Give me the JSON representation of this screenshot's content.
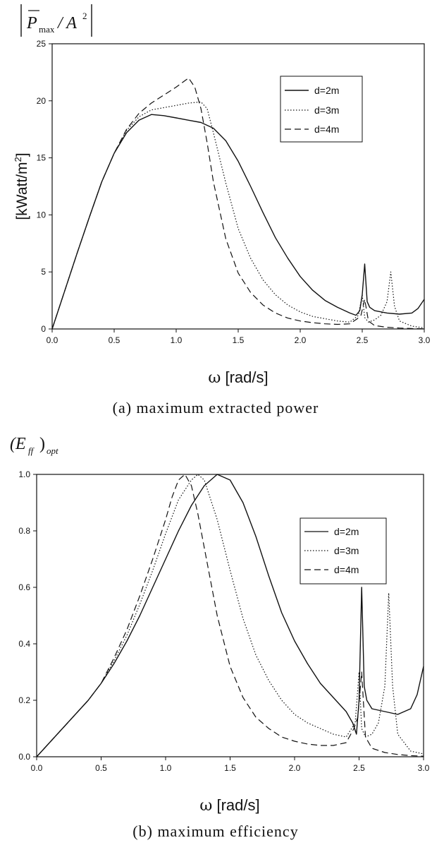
{
  "chart_data": [
    {
      "type": "line",
      "panel_caption": "(a)  maximum  extracted  power",
      "corner_label": {
        "main": "P",
        "sub": "max",
        "rest": "/ A",
        "sup": "2"
      },
      "ylabel": "[kWatt/m",
      "ylabel_sup": "2",
      "ylabel_end": "]",
      "xlabel_symbol": "ω",
      "xlabel": " [rad/s]",
      "xlim": [
        0,
        3
      ],
      "ylim": [
        0,
        25
      ],
      "xticks": [
        "0.0",
        "0.5",
        "1.0",
        "1.5",
        "2.0",
        "2.5",
        "3.0"
      ],
      "yticks": [
        "0",
        "5",
        "10",
        "15",
        "20",
        "25"
      ],
      "legend_position": "top-right",
      "series": [
        {
          "name": "d=2m",
          "style": "solid",
          "x": [
            0,
            0.1,
            0.2,
            0.3,
            0.4,
            0.5,
            0.6,
            0.7,
            0.8,
            0.9,
            1.0,
            1.1,
            1.2,
            1.3,
            1.4,
            1.5,
            1.6,
            1.7,
            1.8,
            1.9,
            2.0,
            2.1,
            2.2,
            2.3,
            2.4,
            2.45,
            2.48,
            2.5,
            2.52,
            2.54,
            2.56,
            2.6,
            2.7,
            2.8,
            2.9,
            2.95,
            3.0
          ],
          "y": [
            0,
            3.3,
            6.6,
            9.8,
            12.9,
            15.4,
            17.2,
            18.3,
            18.8,
            18.7,
            18.5,
            18.3,
            18.1,
            17.6,
            16.5,
            14.7,
            12.5,
            10.2,
            8.0,
            6.2,
            4.6,
            3.4,
            2.5,
            1.9,
            1.4,
            1.2,
            1.6,
            3.0,
            5.7,
            2.4,
            1.9,
            1.6,
            1.4,
            1.3,
            1.4,
            1.8,
            2.6
          ]
        },
        {
          "name": "d=3m",
          "style": "dotted",
          "x": [
            0,
            0.1,
            0.2,
            0.3,
            0.4,
            0.5,
            0.6,
            0.7,
            0.8,
            0.9,
            1.0,
            1.1,
            1.2,
            1.25,
            1.3,
            1.4,
            1.5,
            1.6,
            1.7,
            1.8,
            1.9,
            2.0,
            2.1,
            2.2,
            2.3,
            2.4,
            2.47,
            2.5,
            2.52,
            2.55,
            2.6,
            2.65,
            2.7,
            2.73,
            2.76,
            2.8,
            2.9,
            3.0
          ],
          "y": [
            0,
            3.3,
            6.6,
            9.8,
            12.9,
            15.4,
            17.4,
            18.6,
            19.2,
            19.4,
            19.6,
            19.8,
            19.9,
            19.3,
            17.2,
            12.8,
            8.8,
            6.2,
            4.3,
            3.0,
            2.1,
            1.5,
            1.1,
            0.9,
            0.7,
            0.6,
            1.2,
            3.0,
            1.0,
            0.6,
            0.8,
            1.2,
            2.4,
            5.0,
            2.0,
            0.7,
            0.25,
            0.1
          ]
        },
        {
          "name": "d=4m",
          "style": "dashed",
          "x": [
            0,
            0.1,
            0.2,
            0.3,
            0.4,
            0.5,
            0.6,
            0.7,
            0.8,
            0.9,
            1.0,
            1.05,
            1.1,
            1.15,
            1.2,
            1.25,
            1.3,
            1.4,
            1.5,
            1.6,
            1.7,
            1.8,
            1.9,
            2.0,
            2.1,
            2.2,
            2.3,
            2.4,
            2.46,
            2.49,
            2.52,
            2.55,
            2.6,
            2.7,
            2.8,
            2.9,
            3.0
          ],
          "y": [
            0,
            3.3,
            6.6,
            9.8,
            12.9,
            15.4,
            17.5,
            18.9,
            19.8,
            20.5,
            21.2,
            21.6,
            22.0,
            21.2,
            19.3,
            16.3,
            12.9,
            7.9,
            4.9,
            3.2,
            2.1,
            1.4,
            0.95,
            0.7,
            0.55,
            0.45,
            0.4,
            0.45,
            0.9,
            1.2,
            2.6,
            0.7,
            0.3,
            0.15,
            0.08,
            0.04,
            0.02
          ]
        }
      ]
    },
    {
      "type": "line",
      "panel_caption": "(b)  maximum  efficiency",
      "corner_label": {
        "main": "(E",
        "sub": "ff",
        "rest": ")",
        "sub2": "opt"
      },
      "ylabel": "",
      "xlabel_symbol": "ω",
      "xlabel": " [rad/s]",
      "xlim": [
        0,
        3
      ],
      "ylim": [
        0,
        1
      ],
      "xticks": [
        "0.0",
        "0.5",
        "1.0",
        "1.5",
        "2.0",
        "2.5",
        "3.0"
      ],
      "yticks": [
        "0.0",
        "0.2",
        "0.4",
        "0.6",
        "0.8",
        "1.0"
      ],
      "legend_position": "top-right",
      "series": [
        {
          "name": "d=2m",
          "style": "solid",
          "x": [
            0,
            0.1,
            0.2,
            0.3,
            0.4,
            0.5,
            0.6,
            0.7,
            0.8,
            0.9,
            1.0,
            1.1,
            1.2,
            1.3,
            1.4,
            1.5,
            1.6,
            1.7,
            1.8,
            1.9,
            2.0,
            2.1,
            2.2,
            2.3,
            2.4,
            2.45,
            2.48,
            2.5,
            2.52,
            2.54,
            2.56,
            2.6,
            2.7,
            2.8,
            2.9,
            2.95,
            3.0
          ],
          "y": [
            0,
            0.05,
            0.1,
            0.15,
            0.2,
            0.26,
            0.33,
            0.41,
            0.5,
            0.6,
            0.7,
            0.8,
            0.89,
            0.96,
            1.0,
            0.98,
            0.9,
            0.78,
            0.64,
            0.51,
            0.41,
            0.33,
            0.26,
            0.21,
            0.16,
            0.12,
            0.08,
            0.2,
            0.6,
            0.25,
            0.2,
            0.17,
            0.16,
            0.15,
            0.17,
            0.22,
            0.32
          ]
        },
        {
          "name": "d=3m",
          "style": "dotted",
          "x": [
            0,
            0.1,
            0.2,
            0.3,
            0.4,
            0.5,
            0.6,
            0.7,
            0.8,
            0.9,
            1.0,
            1.1,
            1.2,
            1.25,
            1.3,
            1.4,
            1.5,
            1.6,
            1.7,
            1.8,
            1.9,
            2.0,
            2.1,
            2.2,
            2.3,
            2.4,
            2.47,
            2.5,
            2.52,
            2.55,
            2.6,
            2.65,
            2.7,
            2.73,
            2.76,
            2.8,
            2.9,
            3.0
          ],
          "y": [
            0,
            0.05,
            0.1,
            0.15,
            0.2,
            0.26,
            0.34,
            0.43,
            0.54,
            0.66,
            0.79,
            0.91,
            0.98,
            1.0,
            0.98,
            0.84,
            0.66,
            0.49,
            0.36,
            0.27,
            0.2,
            0.15,
            0.12,
            0.1,
            0.08,
            0.07,
            0.12,
            0.3,
            0.1,
            0.07,
            0.08,
            0.12,
            0.25,
            0.58,
            0.25,
            0.08,
            0.02,
            0.01
          ]
        },
        {
          "name": "d=4m",
          "style": "dashed",
          "x": [
            0,
            0.1,
            0.2,
            0.3,
            0.4,
            0.5,
            0.6,
            0.7,
            0.8,
            0.9,
            1.0,
            1.05,
            1.1,
            1.15,
            1.2,
            1.25,
            1.3,
            1.4,
            1.5,
            1.6,
            1.7,
            1.8,
            1.9,
            2.0,
            2.1,
            2.2,
            2.3,
            2.4,
            2.46,
            2.49,
            2.52,
            2.55,
            2.6,
            2.7,
            2.8,
            2.9,
            3.0
          ],
          "y": [
            0,
            0.05,
            0.1,
            0.15,
            0.2,
            0.26,
            0.35,
            0.45,
            0.57,
            0.7,
            0.84,
            0.92,
            0.98,
            1.0,
            0.96,
            0.86,
            0.74,
            0.5,
            0.32,
            0.21,
            0.14,
            0.1,
            0.07,
            0.055,
            0.045,
            0.04,
            0.04,
            0.05,
            0.1,
            0.14,
            0.3,
            0.07,
            0.03,
            0.015,
            0.008,
            0.004,
            0.002
          ]
        }
      ]
    }
  ]
}
